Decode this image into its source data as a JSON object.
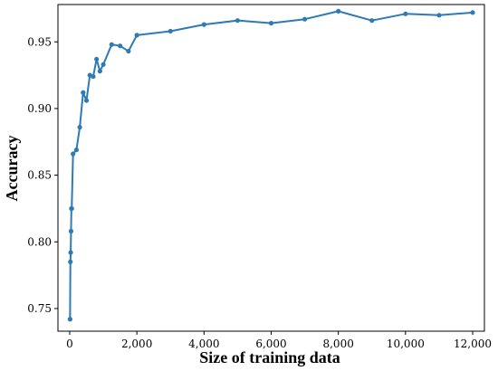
{
  "chart_data": {
    "type": "line",
    "title": "",
    "xlabel": "Size of training data",
    "ylabel": "Accuracy",
    "xlim": [
      -350,
      12350
    ],
    "ylim": [
      0.733,
      0.978
    ],
    "grid": false,
    "xticks": [
      0,
      2000,
      4000,
      6000,
      8000,
      10000,
      12000
    ],
    "xtick_labels": [
      "0",
      "2,000",
      "4,000",
      "6,000",
      "8,000",
      "10,000",
      "12,000"
    ],
    "yticks": [
      0.75,
      0.8,
      0.85,
      0.9,
      0.95
    ],
    "ytick_labels": [
      "0.75",
      "0.80",
      "0.85",
      "0.90",
      "0.95"
    ],
    "series": [
      {
        "color": "#2e7ab5",
        "x": [
          10,
          20,
          30,
          40,
          50,
          60,
          100,
          200,
          300,
          400,
          500,
          600,
          700,
          800,
          900,
          1000,
          1250,
          1500,
          1750,
          2000,
          3000,
          4000,
          5000,
          6000,
          7000,
          8000,
          9000,
          10000,
          11000,
          12000
        ],
        "y": [
          0.742,
          0.785,
          0.792,
          0.808,
          0.825,
          0.825,
          0.866,
          0.869,
          0.886,
          0.912,
          0.906,
          0.925,
          0.924,
          0.937,
          0.928,
          0.933,
          0.948,
          0.947,
          0.943,
          0.955,
          0.958,
          0.963,
          0.966,
          0.964,
          0.967,
          0.973,
          0.966,
          0.971,
          0.97,
          0.972
        ]
      }
    ]
  }
}
